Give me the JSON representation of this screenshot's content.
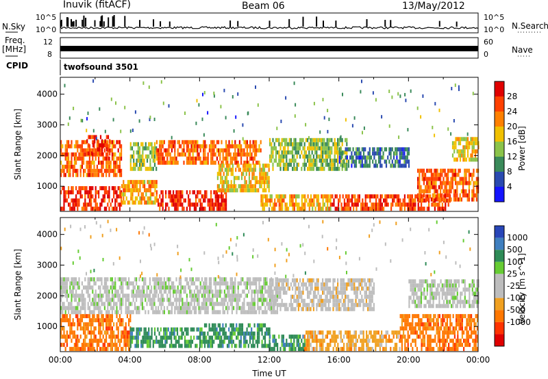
{
  "header": {
    "station": "Inuvik (fitACF)",
    "beam": "Beam 06",
    "date": "13/May/2012"
  },
  "panels": {
    "sky": {
      "left_label": "N.Sky",
      "right_label": "N.Search",
      "left_ticks": [
        "10^5",
        "10^0"
      ],
      "right_ticks": [
        "10^5",
        "10^0"
      ]
    },
    "freq": {
      "left_label_1": "Freq.",
      "left_label_2": "[MHz]",
      "right_label": "Nave",
      "left_ticks": [
        "12",
        "8"
      ],
      "right_ticks": [
        "60",
        "0"
      ]
    },
    "cpid": {
      "left_label": "CPID",
      "program": "twofsound 3501"
    }
  },
  "colors": {
    "power_scale": [
      "#1414ff",
      "#2a4ab0",
      "#3a8a5a",
      "#8bc34a",
      "#f0c000",
      "#ff8000",
      "#ff4000",
      "#e00000"
    ],
    "velocity_scale": [
      "#2846b8",
      "#3f7fbf",
      "#2e8b57",
      "#66cc33",
      "#bdbdbd",
      "#bdbdbd",
      "#f0a020",
      "#ff7700",
      "#ff3300",
      "#e00000"
    ]
  },
  "chart_data": [
    {
      "type": "heatmap",
      "name": "power",
      "xlabel": "",
      "ylabel": "Slant Range [km]",
      "xlim": [
        0,
        24
      ],
      "ylim": [
        180,
        4550
      ],
      "yticks": [
        1000,
        2000,
        3000,
        4000
      ],
      "colorbar": {
        "label": "Power [dB]",
        "ticks": [
          4,
          8,
          12,
          16,
          20,
          24,
          28
        ],
        "range": [
          0,
          32
        ]
      },
      "bands": [
        {
          "t0": 0.0,
          "t1": 3.5,
          "r0": 200,
          "r1": 900,
          "v": 27
        },
        {
          "t0": 0.0,
          "t1": 3.5,
          "r0": 1300,
          "r1": 2400,
          "v": 24
        },
        {
          "t0": 1.5,
          "t1": 2.8,
          "r0": 2000,
          "r1": 2600,
          "v": 28
        },
        {
          "t0": 3.5,
          "t1": 5.5,
          "r0": 400,
          "r1": 1100,
          "v": 20
        },
        {
          "t0": 4.0,
          "t1": 5.5,
          "r0": 1500,
          "r1": 2400,
          "v": 14
        },
        {
          "t0": 5.5,
          "t1": 9.5,
          "r0": 200,
          "r1": 800,
          "v": 28
        },
        {
          "t0": 5.5,
          "t1": 11.5,
          "r0": 1700,
          "r1": 2500,
          "v": 24
        },
        {
          "t0": 9.0,
          "t1": 12.0,
          "r0": 800,
          "r1": 1700,
          "v": 18
        },
        {
          "t0": 11.5,
          "t1": 15.5,
          "r0": 200,
          "r1": 700,
          "v": 20
        },
        {
          "t0": 12.0,
          "t1": 16.5,
          "r0": 1500,
          "r1": 2500,
          "v": 14
        },
        {
          "t0": 15.5,
          "t1": 22.5,
          "r0": 200,
          "r1": 650,
          "v": 26
        },
        {
          "t0": 20.5,
          "t1": 24.0,
          "r0": 500,
          "r1": 1500,
          "v": 24
        },
        {
          "t0": 16.0,
          "t1": 20.0,
          "r0": 1600,
          "r1": 2200,
          "v": 8
        },
        {
          "t0": 22.5,
          "t1": 24.0,
          "r0": 1800,
          "r1": 2600,
          "v": 18
        }
      ]
    },
    {
      "type": "heatmap",
      "name": "velocity",
      "xlabel": "Time UT",
      "ylabel": "Slant Range [km]",
      "xlim": [
        0,
        24
      ],
      "ylim": [
        180,
        4550
      ],
      "xticks": [
        "00:00",
        "04:00",
        "08:00",
        "12:00",
        "16:00",
        "20:00",
        "00:00"
      ],
      "yticks": [
        1000,
        2000,
        3000,
        4000
      ],
      "colorbar": {
        "label": "Velocity [m s^-1]",
        "ticks": [
          "1000",
          "500",
          "100",
          "25",
          "-25",
          "-100",
          "-500",
          "-1000"
        ]
      },
      "bands": [
        {
          "t0": 0.0,
          "t1": 4.0,
          "r0": 200,
          "r1": 1300,
          "c": 7
        },
        {
          "t0": 0.0,
          "t1": 5.5,
          "r0": 1400,
          "r1": 2500,
          "c": 4
        },
        {
          "t0": 4.0,
          "t1": 8.0,
          "r0": 300,
          "r1": 900,
          "c": 2
        },
        {
          "t0": 8.0,
          "t1": 12.0,
          "r0": 300,
          "r1": 1100,
          "c": 2
        },
        {
          "t0": 5.5,
          "t1": 12.5,
          "r0": 1400,
          "r1": 2500,
          "c": 4
        },
        {
          "t0": 12.0,
          "t1": 14.0,
          "r0": 200,
          "r1": 700,
          "c": 2
        },
        {
          "t0": 14.0,
          "t1": 19.5,
          "r0": 200,
          "r1": 800,
          "c": 6
        },
        {
          "t0": 12.0,
          "t1": 18.0,
          "r0": 1500,
          "r1": 2500,
          "c": 5
        },
        {
          "t0": 19.5,
          "t1": 24.0,
          "r0": 200,
          "r1": 1400,
          "c": 7
        },
        {
          "t0": 20.0,
          "t1": 24.0,
          "r0": 1600,
          "r1": 2500,
          "c": 4
        }
      ]
    }
  ]
}
